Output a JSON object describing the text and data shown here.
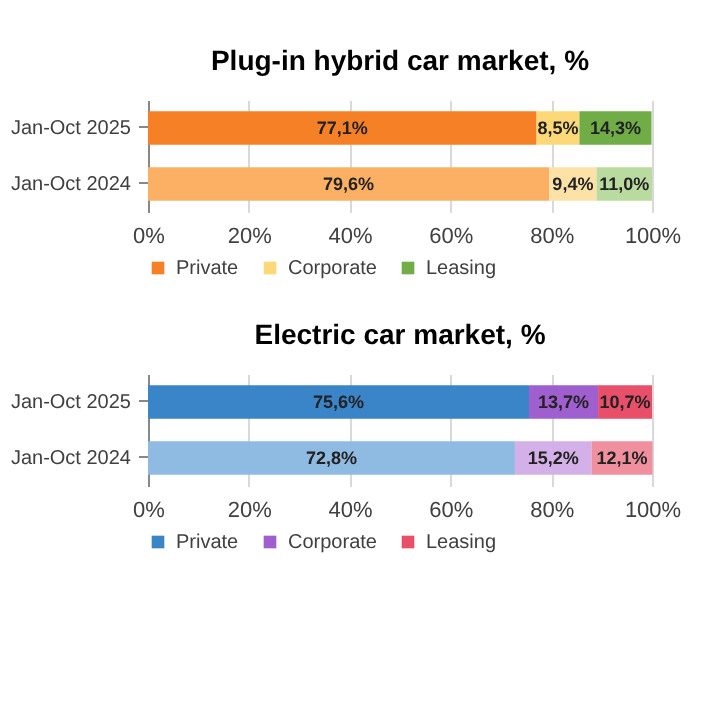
{
  "chart_data": [
    {
      "type": "bar",
      "title": "Plug-in hybrid car market, %",
      "orientation": "horizontal",
      "stacked": true,
      "categories": [
        "Jan-Oct 2025",
        "Jan-Oct 2024"
      ],
      "series": [
        {
          "name": "Private",
          "color": "#f58025",
          "colors": [
            "#f58025",
            "#fbb064"
          ],
          "values": [
            77.1,
            79.6
          ],
          "value_labels": [
            "77,1%",
            "79,6%"
          ]
        },
        {
          "name": "Corporate",
          "color": "#fdd878",
          "colors": [
            "#fdd878",
            "#fde2a8"
          ],
          "values": [
            8.5,
            9.4
          ],
          "value_labels": [
            "8,5%",
            "9,4%"
          ]
        },
        {
          "name": "Leasing",
          "color": "#70ad47",
          "colors": [
            "#70ad47",
            "#b9dba0"
          ],
          "values": [
            14.3,
            11.0
          ],
          "value_labels": [
            "14,3%",
            "11,0%"
          ]
        }
      ],
      "xlim": [
        0,
        100
      ],
      "xticks": [
        {
          "value": 0,
          "label": "0%"
        },
        {
          "value": 20,
          "label": "20%"
        },
        {
          "value": 40,
          "label": "40%"
        },
        {
          "value": 60,
          "label": "60%"
        },
        {
          "value": 80,
          "label": "80%"
        },
        {
          "value": 100,
          "label": "100%"
        }
      ],
      "grid": "x",
      "legend": "bottom"
    },
    {
      "type": "bar",
      "title": "Electric car market, %",
      "orientation": "horizontal",
      "stacked": true,
      "categories": [
        "Jan-Oct 2025",
        "Jan-Oct 2024"
      ],
      "series": [
        {
          "name": "Private",
          "color": "#3a85c8",
          "colors": [
            "#3a85c8",
            "#8fbbe3"
          ],
          "values": [
            75.6,
            72.8
          ],
          "value_labels": [
            "75,6%",
            "72,8%"
          ]
        },
        {
          "name": "Corporate",
          "color": "#9f5fcf",
          "colors": [
            "#9f5fcf",
            "#d3b0e8"
          ],
          "values": [
            13.7,
            15.2
          ],
          "value_labels": [
            "13,7%",
            "15,2%"
          ]
        },
        {
          "name": "Leasing",
          "color": "#e8506a",
          "colors": [
            "#e8506a",
            "#f0909f"
          ],
          "values": [
            10.7,
            12.1
          ],
          "value_labels": [
            "10,7%",
            "12,1%"
          ]
        }
      ],
      "xlim": [
        0,
        100
      ],
      "xticks": [
        {
          "value": 0,
          "label": "0%"
        },
        {
          "value": 20,
          "label": "20%"
        },
        {
          "value": 40,
          "label": "40%"
        },
        {
          "value": 60,
          "label": "60%"
        },
        {
          "value": 80,
          "label": "80%"
        },
        {
          "value": 100,
          "label": "100%"
        }
      ],
      "grid": "x",
      "legend": "bottom"
    }
  ]
}
